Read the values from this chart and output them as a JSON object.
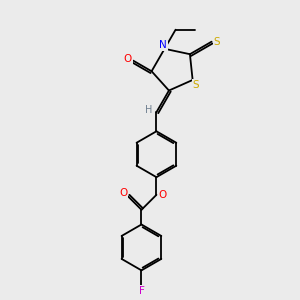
{
  "background_color": "#ebebeb",
  "atom_colors": {
    "C": "#000000",
    "H": "#708090",
    "O": "#ff0000",
    "N": "#0000ff",
    "S": "#ccaa00",
    "F": "#cc00cc"
  },
  "figsize": [
    3.0,
    3.0
  ],
  "dpi": 100,
  "line_width": 1.3,
  "font_size": 7.5
}
